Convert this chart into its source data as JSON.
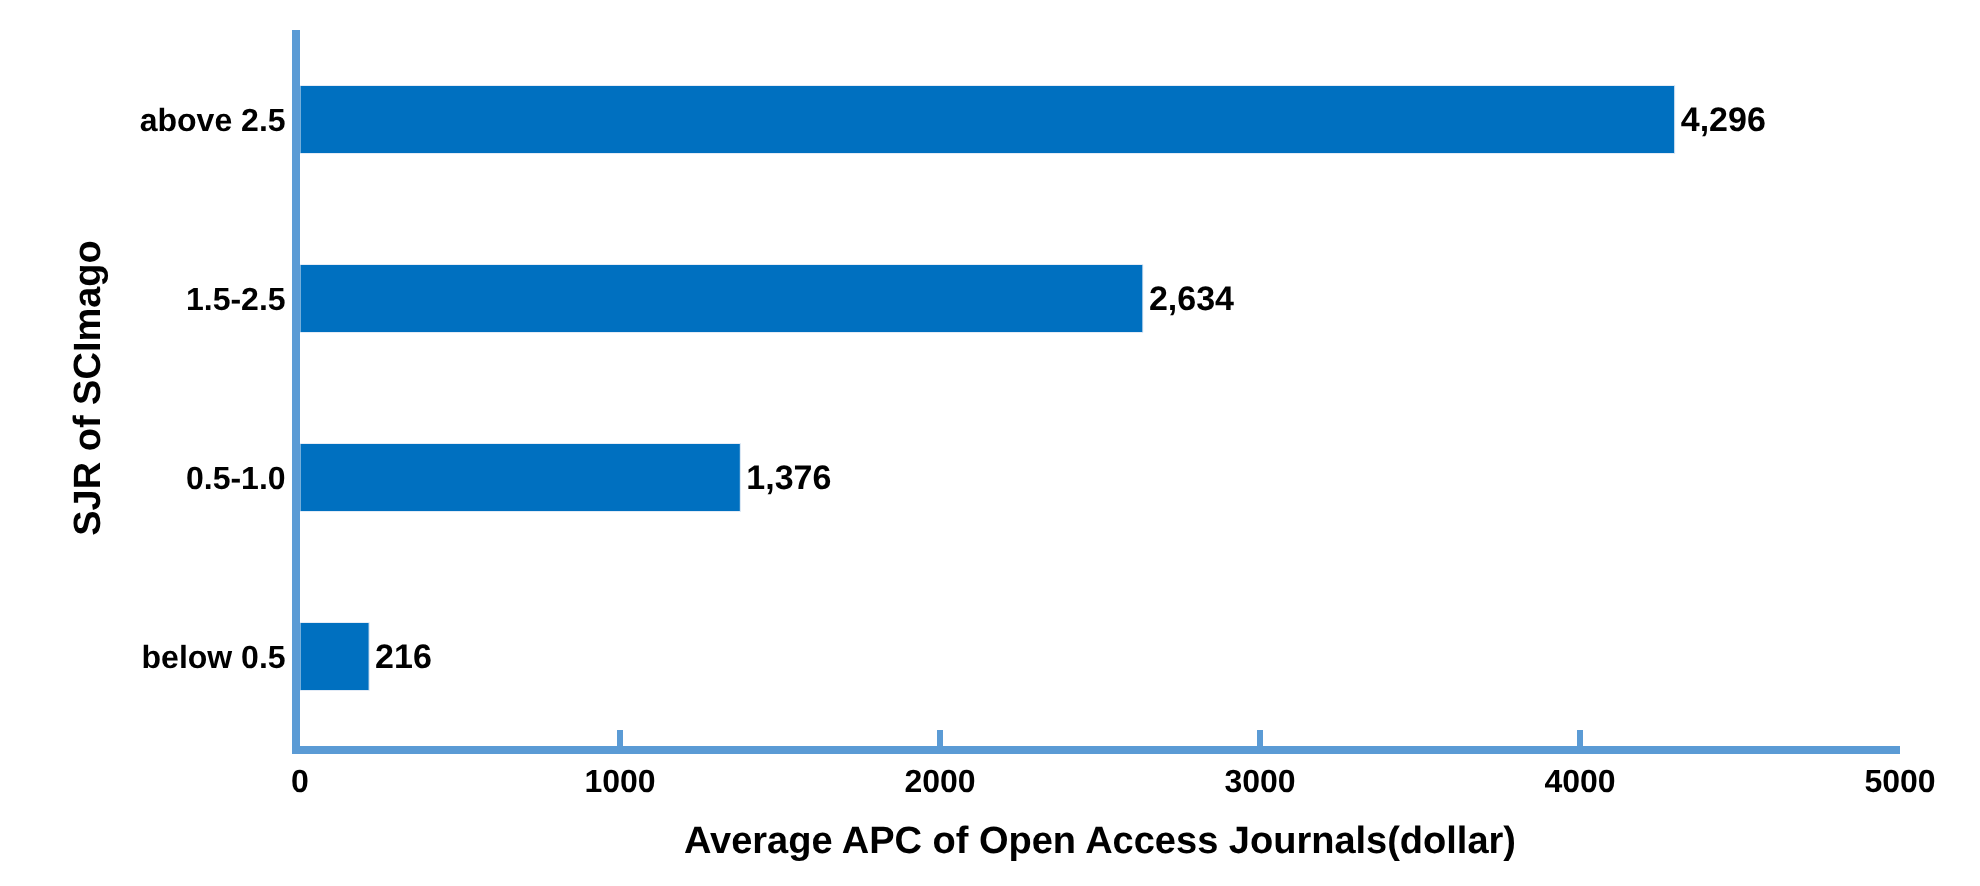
{
  "chart_data": {
    "type": "bar",
    "orientation": "horizontal",
    "xlabel": "Average APC of Open Access Journals(dollar)",
    "ylabel": "SJR of SCImago",
    "categories": [
      "above 2.5",
      "1.5-2.5",
      "0.5-1.0",
      "below 0.5"
    ],
    "values": [
      4296,
      2634,
      1376,
      216
    ],
    "value_labels": [
      "4,296",
      "2,634",
      "1,376",
      "216"
    ],
    "color": "#0070c0",
    "xlim": [
      0,
      5000
    ],
    "xticks": [
      0,
      1000,
      2000,
      3000,
      4000,
      5000
    ]
  }
}
